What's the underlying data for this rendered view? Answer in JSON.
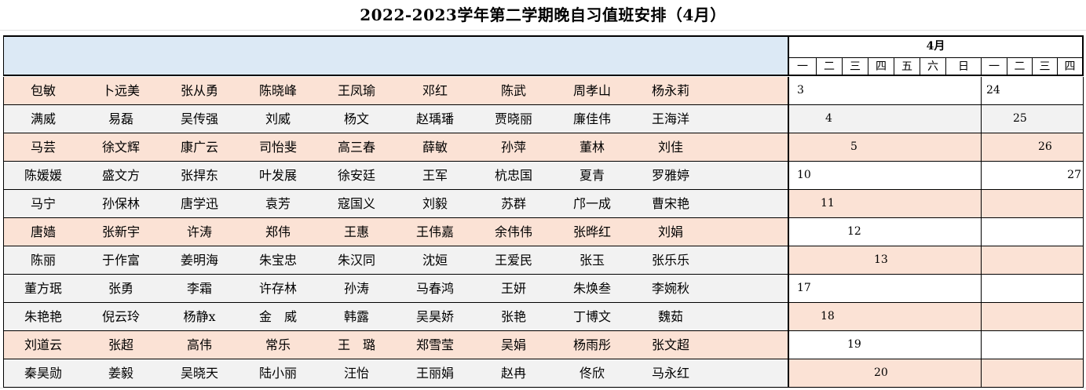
{
  "title": "2022-2023学年第二学期晚自习值班安排（4月）",
  "calendar": {
    "month": "4月",
    "week1_days": [
      "一",
      "二",
      "三",
      "四",
      "五",
      "六",
      "日"
    ],
    "week2_days": [
      "一",
      "二",
      "三",
      "四"
    ]
  },
  "colors": {
    "pink": "#fbe2d5",
    "gray": "#f2f2f2",
    "header_blue": "#dce9f5"
  },
  "rows": [
    {
      "names": [
        "包敏",
        "卜远美",
        "张从勇",
        "陈晓峰",
        "王凤瑜",
        "邓红",
        "陈武",
        "周孝山",
        "杨永莉"
      ],
      "date1": "3",
      "date2": "24"
    },
    {
      "names": [
        "满威",
        "易磊",
        "吴传强",
        "刘威",
        "杨文",
        "赵瑀璠",
        "贾晓丽",
        "廉佳伟",
        "王海洋"
      ],
      "date1": "4",
      "date2": "25"
    },
    {
      "names": [
        "马芸",
        "徐文辉",
        "康广云",
        "司怡斐",
        "高三春",
        "薛敏",
        "孙萍",
        "董林",
        "刘佳"
      ],
      "date1": "5",
      "date2": "26"
    },
    {
      "names": [
        "陈媛媛",
        "盛文方",
        "张捍东",
        "叶发展",
        "徐安廷",
        "王军",
        "杭忠国",
        "夏青",
        "罗雅婷"
      ],
      "date1": "10",
      "date2": "27"
    },
    {
      "names": [
        "马宁",
        "孙保林",
        "唐学迅",
        "袁芳",
        "寇国义",
        "刘毅",
        "苏群",
        "邝一成",
        "曹宋艳"
      ],
      "date1": "11",
      "date2": ""
    },
    {
      "names": [
        "唐嫱",
        "张新宇",
        "许涛",
        "郑伟",
        "王惠",
        "王伟嘉",
        "余伟伟",
        "张晔红",
        "刘娟"
      ],
      "date1": "12",
      "date2": ""
    },
    {
      "names": [
        "陈丽",
        "于作富",
        "姜明海",
        "朱宝忠",
        "朱汉同",
        "沈姮",
        "王爱民",
        "张玉",
        "张乐乐"
      ],
      "date1": "13",
      "date2": ""
    },
    {
      "names": [
        "董方珉",
        "张勇",
        "李霜",
        "许存林",
        "孙涛",
        "马春鸿",
        "王妍",
        "朱焕叁",
        "李婉秋"
      ],
      "date1": "17",
      "date2": ""
    },
    {
      "names": [
        "朱艳艳",
        "倪云玲",
        "杨静x",
        "金　威",
        "韩露",
        "吴昊娇",
        "张艳",
        "丁博文",
        "魏茹"
      ],
      "date1": "18",
      "date2": ""
    },
    {
      "names": [
        "刘道云",
        "张超",
        "高伟",
        "常乐",
        "王　璐",
        "郑雪莹",
        "吴娟",
        "杨雨彤",
        "张文超"
      ],
      "date1": "19",
      "date2": ""
    },
    {
      "names": [
        "秦昊勋",
        "姜毅",
        "吴晓天",
        "陆小丽",
        "汪怡",
        "王丽娟",
        "赵冉",
        "佟欣",
        "马永红"
      ],
      "date1": "20",
      "date2": ""
    }
  ]
}
